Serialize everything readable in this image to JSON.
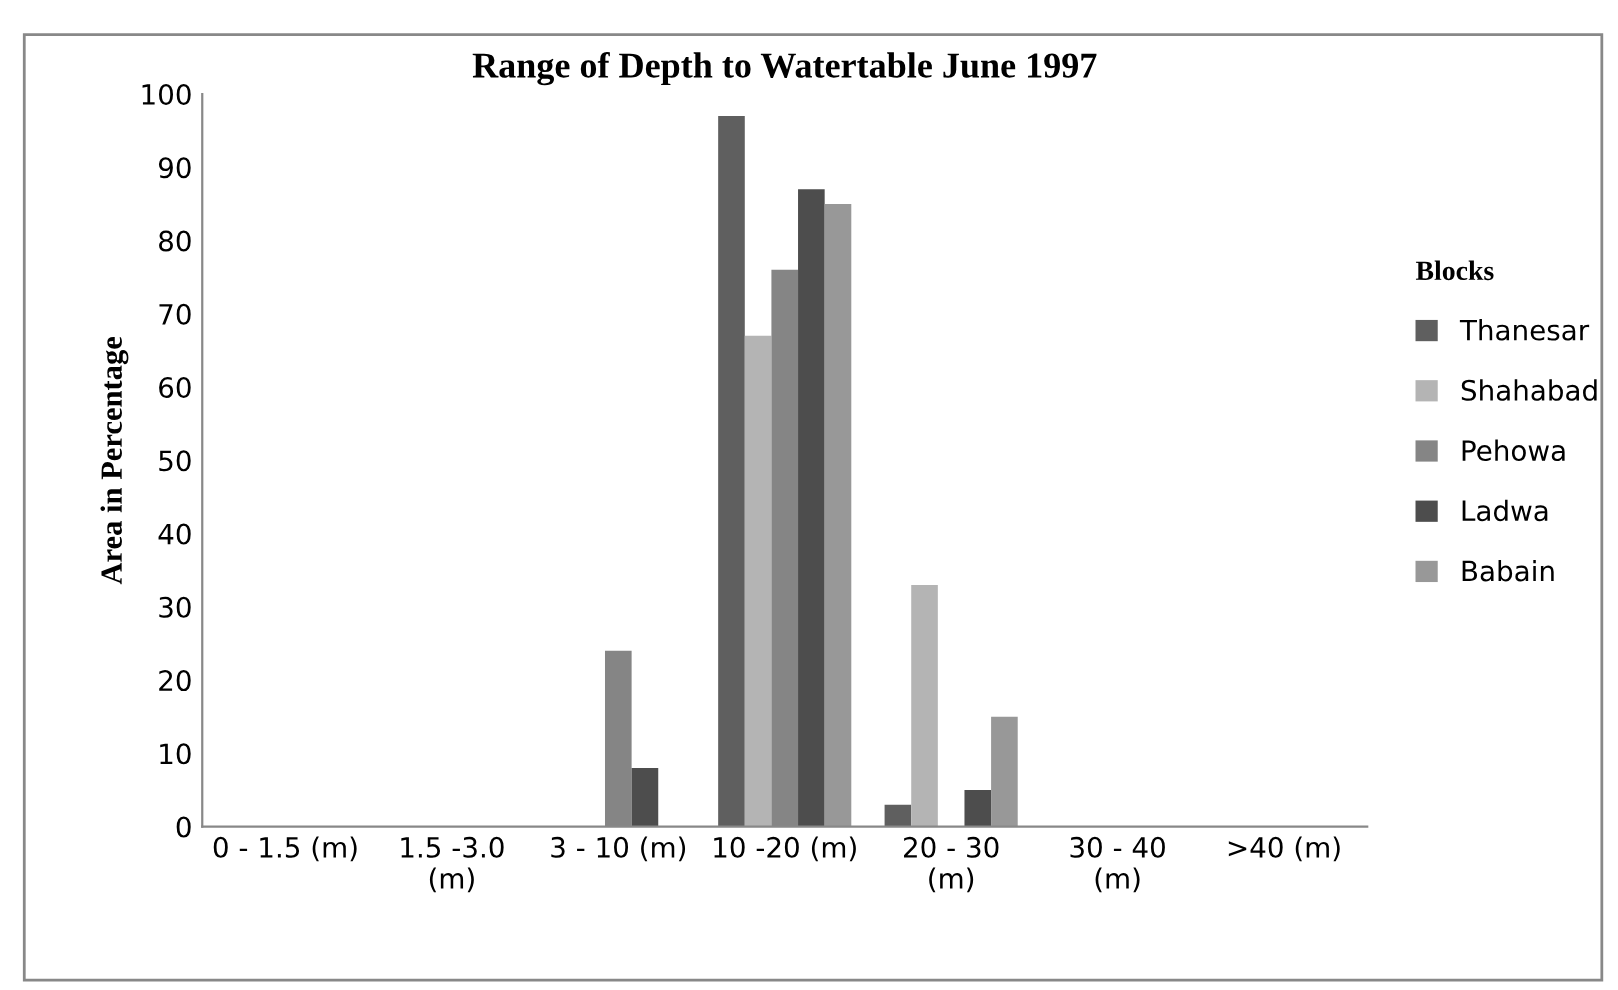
{
  "chart_data": {
    "type": "bar",
    "title": "Range of Depth to Watertable June 1997",
    "ylabel": "Area in Percentage",
    "legend_title": "Blocks",
    "categories": [
      "0 - 1.5 (m)",
      "1.5 -3.0\n(m)",
      "3 - 10 (m)",
      "10 -20 (m)",
      "20 - 30\n(m)",
      "30 - 40\n(m)",
      ">40 (m)"
    ],
    "series": [
      {
        "name": "Thanesar",
        "color": "#5f5f5f",
        "values": [
          0,
          0,
          0,
          97,
          3,
          0,
          0
        ]
      },
      {
        "name": "Shahabad",
        "color": "#b4b4b4",
        "values": [
          0,
          0,
          0,
          67,
          33,
          0,
          0
        ]
      },
      {
        "name": "Pehowa",
        "color": "#858585",
        "values": [
          0,
          0,
          24,
          76,
          0,
          0,
          0
        ]
      },
      {
        "name": "Ladwa",
        "color": "#4d4d4d",
        "values": [
          0,
          0,
          8,
          87,
          5,
          0,
          0
        ]
      },
      {
        "name": "Babain",
        "color": "#989898",
        "values": [
          0,
          0,
          0,
          85,
          15,
          0,
          0
        ]
      }
    ],
    "ylim": [
      0,
      100
    ],
    "yticks": [
      0,
      10,
      20,
      30,
      40,
      50,
      60,
      70,
      80,
      90,
      100
    ],
    "grid": false,
    "legend": "right"
  }
}
